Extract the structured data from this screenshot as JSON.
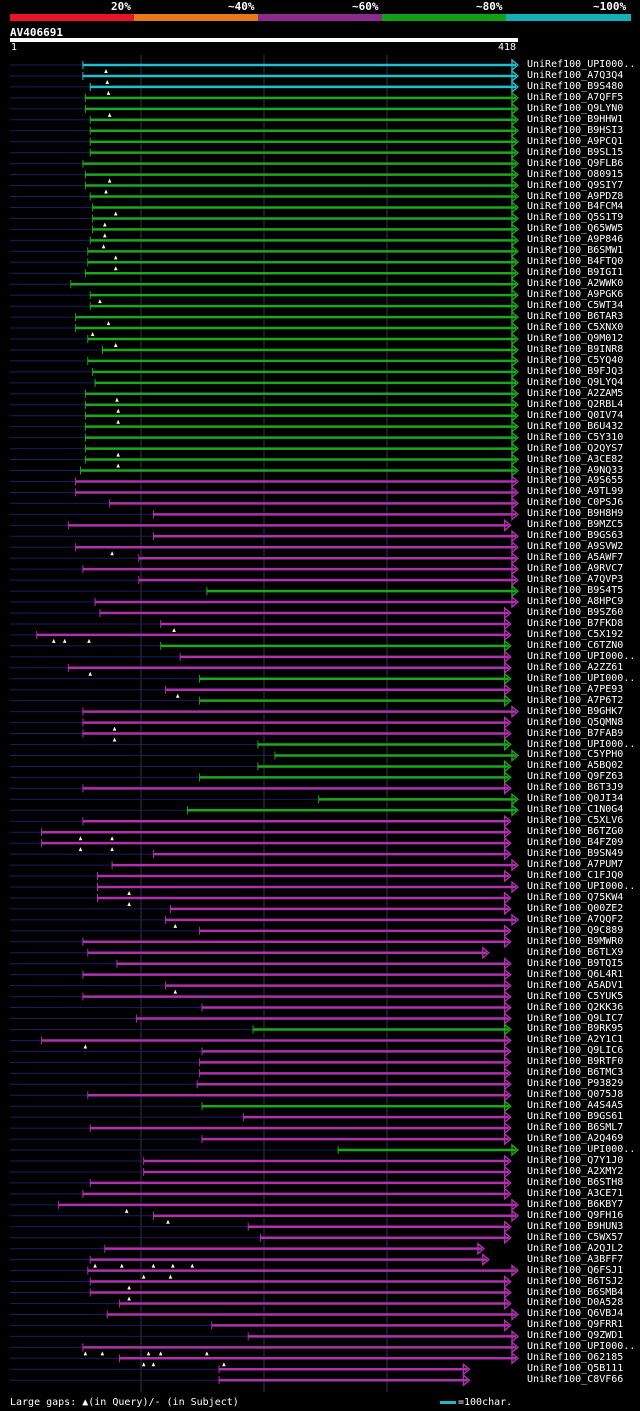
{
  "legend": {
    "segments": [
      {
        "label": "20%",
        "color": "#e8142a"
      },
      {
        "label": "~40%",
        "color": "#e67a18"
      },
      {
        "label": "~60%",
        "color": "#8a2a8f"
      },
      {
        "label": "~80%",
        "color": "#14a014"
      },
      {
        "label": "~100%",
        "color": "#12b0b8"
      }
    ]
  },
  "query": {
    "name": "AV406691",
    "start": "1",
    "end": "418",
    "length": 418
  },
  "colors": {
    "cyan": "#1fc0cc",
    "green": "#1ca81c",
    "magenta": "#b030b0",
    "navy": "#1c1c66",
    "grid": "#333344",
    "marker": "#ffffaa"
  },
  "hits": [
    {
      "label": "UniRef100_UPI000..",
      "color": "cyan",
      "start": 60,
      "end": 418,
      "marks": [
        79
      ]
    },
    {
      "label": "UniRef100_A7Q3Q4",
      "color": "cyan",
      "start": 60,
      "end": 418,
      "marks": [
        80
      ]
    },
    {
      "label": "UniRef100_B9S480",
      "color": "cyan",
      "start": 66,
      "end": 418,
      "marks": [
        81
      ]
    },
    {
      "label": "UniRef100_A7QFF5",
      "color": "green",
      "start": 62,
      "end": 418,
      "marks": []
    },
    {
      "label": "UniRef100_Q9LYN0",
      "color": "green",
      "start": 62,
      "end": 418,
      "marks": [
        82
      ]
    },
    {
      "label": "UniRef100_B9HHW1",
      "color": "green",
      "start": 66,
      "end": 418,
      "marks": []
    },
    {
      "label": "UniRef100_B9HSI3",
      "color": "green",
      "start": 66,
      "end": 418,
      "marks": []
    },
    {
      "label": "UniRef100_A9PCQ1",
      "color": "green",
      "start": 66,
      "end": 418,
      "marks": []
    },
    {
      "label": "UniRef100_B9SL15",
      "color": "green",
      "start": 66,
      "end": 418,
      "marks": []
    },
    {
      "label": "UniRef100_Q9FLB6",
      "color": "green",
      "start": 60,
      "end": 418,
      "marks": []
    },
    {
      "label": "UniRef100_O80915",
      "color": "green",
      "start": 62,
      "end": 418,
      "marks": [
        82
      ]
    },
    {
      "label": "UniRef100_Q9SIY7",
      "color": "green",
      "start": 62,
      "end": 418,
      "marks": [
        79
      ]
    },
    {
      "label": "UniRef100_A9PDZ8",
      "color": "green",
      "start": 66,
      "end": 418,
      "marks": []
    },
    {
      "label": "UniRef100_B4FCM4",
      "color": "green",
      "start": 68,
      "end": 418,
      "marks": [
        87
      ]
    },
    {
      "label": "UniRef100_Q5S1T9",
      "color": "green",
      "start": 68,
      "end": 418,
      "marks": [
        78
      ]
    },
    {
      "label": "UniRef100_Q65WW5",
      "color": "green",
      "start": 68,
      "end": 418,
      "marks": [
        78
      ]
    },
    {
      "label": "UniRef100_A9P846",
      "color": "green",
      "start": 66,
      "end": 418,
      "marks": [
        77
      ]
    },
    {
      "label": "UniRef100_B6SMW1",
      "color": "green",
      "start": 64,
      "end": 418,
      "marks": [
        87
      ]
    },
    {
      "label": "UniRef100_B4FTQ0",
      "color": "green",
      "start": 64,
      "end": 418,
      "marks": [
        87
      ]
    },
    {
      "label": "UniRef100_B9IGI1",
      "color": "green",
      "start": 62,
      "end": 418,
      "marks": []
    },
    {
      "label": "UniRef100_A2WWK0",
      "color": "green",
      "start": 50,
      "end": 418,
      "marks": []
    },
    {
      "label": "UniRef100_A9PGK6",
      "color": "green",
      "start": 66,
      "end": 418,
      "marks": [
        74
      ]
    },
    {
      "label": "UniRef100_C5WT34",
      "color": "green",
      "start": 66,
      "end": 418,
      "marks": []
    },
    {
      "label": "UniRef100_B6TAR3",
      "color": "green",
      "start": 54,
      "end": 418,
      "marks": [
        81
      ]
    },
    {
      "label": "UniRef100_C5XNX0",
      "color": "green",
      "start": 54,
      "end": 418,
      "marks": [
        68
      ]
    },
    {
      "label": "UniRef100_Q9M012",
      "color": "green",
      "start": 64,
      "end": 418,
      "marks": [
        87
      ]
    },
    {
      "label": "UniRef100_B9INR8",
      "color": "green",
      "start": 76,
      "end": 418,
      "marks": []
    },
    {
      "label": "UniRef100_C5YQ40",
      "color": "green",
      "start": 64,
      "end": 418,
      "marks": []
    },
    {
      "label": "UniRef100_B9FJQ3",
      "color": "green",
      "start": 68,
      "end": 418,
      "marks": []
    },
    {
      "label": "UniRef100_Q9LYQ4",
      "color": "green",
      "start": 70,
      "end": 418,
      "marks": []
    },
    {
      "label": "UniRef100_A2ZAM5",
      "color": "green",
      "start": 62,
      "end": 418,
      "marks": [
        88
      ]
    },
    {
      "label": "UniRef100_Q2RBL4",
      "color": "green",
      "start": 62,
      "end": 418,
      "marks": [
        89
      ]
    },
    {
      "label": "UniRef100_Q0IV74",
      "color": "green",
      "start": 62,
      "end": 418,
      "marks": [
        89
      ]
    },
    {
      "label": "UniRef100_B6U432",
      "color": "green",
      "start": 62,
      "end": 418,
      "marks": []
    },
    {
      "label": "UniRef100_C5Y310",
      "color": "green",
      "start": 62,
      "end": 418,
      "marks": []
    },
    {
      "label": "UniRef100_Q2QYS7",
      "color": "green",
      "start": 62,
      "end": 418,
      "marks": [
        89
      ]
    },
    {
      "label": "UniRef100_A3CE82",
      "color": "green",
      "start": 62,
      "end": 418,
      "marks": [
        89
      ]
    },
    {
      "label": "UniRef100_A9NQ33",
      "color": "green",
      "start": 58,
      "end": 418,
      "marks": []
    },
    {
      "label": "UniRef100_A9S655",
      "color": "magenta",
      "start": 54,
      "end": 418,
      "marks": []
    },
    {
      "label": "UniRef100_A9TL99",
      "color": "magenta",
      "start": 54,
      "end": 418,
      "marks": []
    },
    {
      "label": "UniRef100_C0PSJ6",
      "color": "magenta",
      "start": 82,
      "end": 418,
      "marks": []
    },
    {
      "label": "UniRef100_B9H8H9",
      "color": "magenta",
      "start": 118,
      "end": 418,
      "marks": []
    },
    {
      "label": "UniRef100_B9MZC5",
      "color": "magenta",
      "start": 48,
      "end": 412,
      "marks": []
    },
    {
      "label": "UniRef100_B9GS63",
      "color": "magenta",
      "start": 118,
      "end": 418,
      "marks": []
    },
    {
      "label": "UniRef100_A9SVW2",
      "color": "magenta",
      "start": 54,
      "end": 418,
      "marks": [
        84
      ]
    },
    {
      "label": "UniRef100_A5AWF7",
      "color": "magenta",
      "start": 106,
      "end": 418,
      "marks": []
    },
    {
      "label": "UniRef100_A9RVC7",
      "color": "magenta",
      "start": 60,
      "end": 418,
      "marks": []
    },
    {
      "label": "UniRef100_A7QVP3",
      "color": "magenta",
      "start": 106,
      "end": 418,
      "marks": []
    },
    {
      "label": "UniRef100_B9S4T5",
      "color": "green",
      "start": 162,
      "end": 418,
      "marks": []
    },
    {
      "label": "UniRef100_A8HPC9",
      "color": "magenta",
      "start": 70,
      "end": 418,
      "marks": []
    },
    {
      "label": "UniRef100_B9SZ60",
      "color": "magenta",
      "start": 74,
      "end": 412,
      "marks": []
    },
    {
      "label": "UniRef100_B7FKD8",
      "color": "magenta",
      "start": 124,
      "end": 412,
      "marks": [
        135
      ]
    },
    {
      "label": "UniRef100_C5X192",
      "color": "magenta",
      "start": 22,
      "end": 412,
      "marks": [
        36,
        45,
        65
      ]
    },
    {
      "label": "UniRef100_C6TZN0",
      "color": "green",
      "start": 124,
      "end": 412,
      "marks": []
    },
    {
      "label": "UniRef100_UPI000..",
      "color": "magenta",
      "start": 140,
      "end": 412,
      "marks": []
    },
    {
      "label": "UniRef100_A2ZZ61",
      "color": "magenta",
      "start": 48,
      "end": 412,
      "marks": [
        66
      ]
    },
    {
      "label": "UniRef100_UPI000..",
      "color": "green",
      "start": 156,
      "end": 412,
      "marks": []
    },
    {
      "label": "UniRef100_A7PE93",
      "color": "magenta",
      "start": 128,
      "end": 412,
      "marks": [
        138
      ]
    },
    {
      "label": "UniRef100_A7P6T2",
      "color": "green",
      "start": 156,
      "end": 412,
      "marks": []
    },
    {
      "label": "UniRef100_B9GHK7",
      "color": "magenta",
      "start": 60,
      "end": 418,
      "marks": []
    },
    {
      "label": "UniRef100_Q5QMN8",
      "color": "magenta",
      "start": 60,
      "end": 412,
      "marks": [
        86
      ]
    },
    {
      "label": "UniRef100_B7FAB9",
      "color": "magenta",
      "start": 60,
      "end": 412,
      "marks": [
        86
      ]
    },
    {
      "label": "UniRef100_UPI000..",
      "color": "green",
      "start": 204,
      "end": 412,
      "marks": []
    },
    {
      "label": "UniRef100_C5YPH0",
      "color": "green",
      "start": 218,
      "end": 418,
      "marks": []
    },
    {
      "label": "UniRef100_A5BQ02",
      "color": "green",
      "start": 204,
      "end": 412,
      "marks": []
    },
    {
      "label": "UniRef100_Q9FZ63",
      "color": "green",
      "start": 156,
      "end": 412,
      "marks": []
    },
    {
      "label": "UniRef100_B6T3J9",
      "color": "magenta",
      "start": 60,
      "end": 412,
      "marks": []
    },
    {
      "label": "UniRef100_Q0JI34",
      "color": "green",
      "start": 254,
      "end": 418,
      "marks": []
    },
    {
      "label": "UniRef100_C1N0G4",
      "color": "green",
      "start": 146,
      "end": 418,
      "marks": []
    },
    {
      "label": "UniRef100_C5XLV6",
      "color": "magenta",
      "start": 60,
      "end": 412,
      "marks": []
    },
    {
      "label": "UniRef100_B6TZG0",
      "color": "magenta",
      "start": 26,
      "end": 412,
      "marks": [
        58,
        84
      ]
    },
    {
      "label": "UniRef100_B4FZ09",
      "color": "magenta",
      "start": 26,
      "end": 412,
      "marks": [
        58,
        84
      ]
    },
    {
      "label": "UniRef100_B9SN49",
      "color": "magenta",
      "start": 118,
      "end": 412,
      "marks": []
    },
    {
      "label": "UniRef100_A7PUM7",
      "color": "magenta",
      "start": 84,
      "end": 418,
      "marks": []
    },
    {
      "label": "UniRef100_C1FJQ0",
      "color": "magenta",
      "start": 72,
      "end": 412,
      "marks": []
    },
    {
      "label": "UniRef100_UPI000..",
      "color": "magenta",
      "start": 72,
      "end": 418,
      "marks": [
        98
      ]
    },
    {
      "label": "UniRef100_Q75KW4",
      "color": "magenta",
      "start": 72,
      "end": 412,
      "marks": [
        98
      ]
    },
    {
      "label": "UniRef100_Q00ZE2",
      "color": "magenta",
      "start": 132,
      "end": 412,
      "marks": []
    },
    {
      "label": "UniRef100_A7QQF2",
      "color": "magenta",
      "start": 128,
      "end": 418,
      "marks": [
        136
      ]
    },
    {
      "label": "UniRef100_Q9C889",
      "color": "magenta",
      "start": 156,
      "end": 412,
      "marks": []
    },
    {
      "label": "UniRef100_B9MWR0",
      "color": "magenta",
      "start": 60,
      "end": 412,
      "marks": []
    },
    {
      "label": "UniRef100_B6TLX9",
      "color": "magenta",
      "start": 64,
      "end": 394,
      "marks": []
    },
    {
      "label": "UniRef100_B9TQI5",
      "color": "magenta",
      "start": 88,
      "end": 412,
      "marks": []
    },
    {
      "label": "UniRef100_Q6L4R1",
      "color": "magenta",
      "start": 60,
      "end": 412,
      "marks": []
    },
    {
      "label": "UniRef100_A5ADV1",
      "color": "magenta",
      "start": 128,
      "end": 412,
      "marks": [
        136
      ]
    },
    {
      "label": "UniRef100_C5YUK5",
      "color": "magenta",
      "start": 60,
      "end": 412,
      "marks": []
    },
    {
      "label": "UniRef100_Q2KK36",
      "color": "magenta",
      "start": 158,
      "end": 412,
      "marks": []
    },
    {
      "label": "UniRef100_Q9LIC7",
      "color": "magenta",
      "start": 104,
      "end": 412,
      "marks": []
    },
    {
      "label": "UniRef100_B9RK95",
      "color": "green",
      "start": 200,
      "end": 412,
      "marks": []
    },
    {
      "label": "UniRef100_A2Y1C1",
      "color": "magenta",
      "start": 26,
      "end": 412,
      "marks": [
        62
      ]
    },
    {
      "label": "UniRef100_Q9LIC6",
      "color": "magenta",
      "start": 158,
      "end": 412,
      "marks": []
    },
    {
      "label": "UniRef100_B9RTF0",
      "color": "magenta",
      "start": 156,
      "end": 412,
      "marks": []
    },
    {
      "label": "UniRef100_B6TMC3",
      "color": "magenta",
      "start": 156,
      "end": 412,
      "marks": []
    },
    {
      "label": "UniRef100_P93829",
      "color": "magenta",
      "start": 154,
      "end": 412,
      "marks": []
    },
    {
      "label": "UniRef100_Q075J8",
      "color": "magenta",
      "start": 64,
      "end": 412,
      "marks": []
    },
    {
      "label": "UniRef100_A4S4A5",
      "color": "green",
      "start": 158,
      "end": 412,
      "marks": []
    },
    {
      "label": "UniRef100_B9GS61",
      "color": "magenta",
      "start": 192,
      "end": 412,
      "marks": []
    },
    {
      "label": "UniRef100_B6SML7",
      "color": "magenta",
      "start": 66,
      "end": 412,
      "marks": []
    },
    {
      "label": "UniRef100_A2Q469",
      "color": "magenta",
      "start": 158,
      "end": 412,
      "marks": []
    },
    {
      "label": "UniRef100_UPI000..",
      "color": "green",
      "start": 270,
      "end": 418,
      "marks": []
    },
    {
      "label": "UniRef100_Q7Y1J0",
      "color": "magenta",
      "start": 110,
      "end": 412,
      "marks": []
    },
    {
      "label": "UniRef100_A2XMY2",
      "color": "magenta",
      "start": 110,
      "end": 412,
      "marks": []
    },
    {
      "label": "UniRef100_B6STH8",
      "color": "magenta",
      "start": 66,
      "end": 412,
      "marks": []
    },
    {
      "label": "UniRef100_A3CE71",
      "color": "magenta",
      "start": 60,
      "end": 412,
      "marks": []
    },
    {
      "label": "UniRef100_B6KBY7",
      "color": "magenta",
      "start": 40,
      "end": 418,
      "marks": [
        96
      ]
    },
    {
      "label": "UniRef100_Q9FH16",
      "color": "magenta",
      "start": 118,
      "end": 418,
      "marks": [
        130
      ]
    },
    {
      "label": "UniRef100_B9HUN3",
      "color": "magenta",
      "start": 196,
      "end": 412,
      "marks": []
    },
    {
      "label": "UniRef100_C5WX57",
      "color": "magenta",
      "start": 206,
      "end": 412,
      "marks": []
    },
    {
      "label": "UniRef100_A2QJL2",
      "color": "magenta",
      "start": 78,
      "end": 390,
      "marks": []
    },
    {
      "label": "UniRef100_A3BFF7",
      "color": "magenta",
      "start": 66,
      "end": 394,
      "marks": [
        70,
        92,
        118,
        134,
        150
      ]
    },
    {
      "label": "UniRef100_Q6FSJ1",
      "color": "magenta",
      "start": 64,
      "end": 418,
      "marks": [
        110,
        132
      ]
    },
    {
      "label": "UniRef100_B6TSJ2",
      "color": "magenta",
      "start": 66,
      "end": 412,
      "marks": [
        98
      ]
    },
    {
      "label": "UniRef100_B6SMB4",
      "color": "magenta",
      "start": 66,
      "end": 412,
      "marks": [
        98
      ]
    },
    {
      "label": "UniRef100_D0A528",
      "color": "magenta",
      "start": 90,
      "end": 412,
      "marks": []
    },
    {
      "label": "UniRef100_Q6VBJ4",
      "color": "magenta",
      "start": 80,
      "end": 418,
      "marks": []
    },
    {
      "label": "UniRef100_Q9FRR1",
      "color": "magenta",
      "start": 166,
      "end": 412,
      "marks": []
    },
    {
      "label": "UniRef100_Q9ZWD1",
      "color": "magenta",
      "start": 196,
      "end": 418,
      "marks": []
    },
    {
      "label": "UniRef100_UPI000..",
      "color": "magenta",
      "start": 60,
      "end": 418,
      "marks": [
        62,
        76,
        114,
        124,
        162
      ]
    },
    {
      "label": "UniRef100_O62185",
      "color": "magenta",
      "start": 90,
      "end": 418,
      "marks": [
        110,
        118,
        176
      ]
    },
    {
      "label": "UniRef100_Q5B111",
      "color": "magenta",
      "start": 172,
      "end": 378,
      "marks": []
    },
    {
      "label": "UniRef100_C8VF66",
      "color": "magenta",
      "start": 172,
      "end": 378,
      "marks": []
    }
  ],
  "footer": {
    "gaps_text": "Large gaps: ▲(in Query)/- (in Subject)",
    "scale_text": "=100char."
  }
}
